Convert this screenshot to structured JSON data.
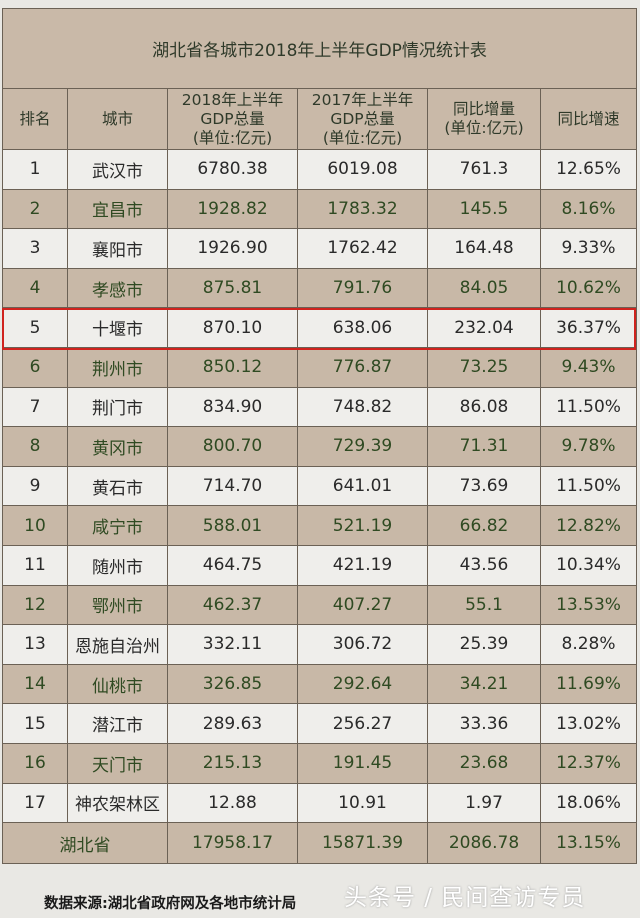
{
  "title": "湖北省各城市2018年上半年GDP情况统计表",
  "headers": {
    "rank": "排名",
    "city": "城市",
    "gdp2018": [
      "2018年上半年",
      "GDP总量",
      "(单位:亿元)"
    ],
    "gdp2017": [
      "2017年上半年",
      "GDP总量",
      "(单位:亿元)"
    ],
    "increase": [
      "同比增量",
      "(单位:亿元)"
    ],
    "growth": "同比增速"
  },
  "rows": [
    {
      "rank": "1",
      "city": "武汉市",
      "gdp2018": "6780.38",
      "gdp2017": "6019.08",
      "increase": "761.3",
      "growth": "12.65%"
    },
    {
      "rank": "2",
      "city": "宜昌市",
      "gdp2018": "1928.82",
      "gdp2017": "1783.32",
      "increase": "145.5",
      "growth": "8.16%"
    },
    {
      "rank": "3",
      "city": "襄阳市",
      "gdp2018": "1926.90",
      "gdp2017": "1762.42",
      "increase": "164.48",
      "growth": "9.33%"
    },
    {
      "rank": "4",
      "city": "孝感市",
      "gdp2018": "875.81",
      "gdp2017": "791.76",
      "increase": "84.05",
      "growth": "10.62%"
    },
    {
      "rank": "5",
      "city": "十堰市",
      "gdp2018": "870.10",
      "gdp2017": "638.06",
      "increase": "232.04",
      "growth": "36.37%"
    },
    {
      "rank": "6",
      "city": "荆州市",
      "gdp2018": "850.12",
      "gdp2017": "776.87",
      "increase": "73.25",
      "growth": "9.43%"
    },
    {
      "rank": "7",
      "city": "荆门市",
      "gdp2018": "834.90",
      "gdp2017": "748.82",
      "increase": "86.08",
      "growth": "11.50%"
    },
    {
      "rank": "8",
      "city": "黄冈市",
      "gdp2018": "800.70",
      "gdp2017": "729.39",
      "increase": "71.31",
      "growth": "9.78%"
    },
    {
      "rank": "9",
      "city": "黄石市",
      "gdp2018": "714.70",
      "gdp2017": "641.01",
      "increase": "73.69",
      "growth": "11.50%"
    },
    {
      "rank": "10",
      "city": "咸宁市",
      "gdp2018": "588.01",
      "gdp2017": "521.19",
      "increase": "66.82",
      "growth": "12.82%"
    },
    {
      "rank": "11",
      "city": "随州市",
      "gdp2018": "464.75",
      "gdp2017": "421.19",
      "increase": "43.56",
      "growth": "10.34%"
    },
    {
      "rank": "12",
      "city": "鄂州市",
      "gdp2018": "462.37",
      "gdp2017": "407.27",
      "increase": "55.1",
      "growth": "13.53%"
    },
    {
      "rank": "13",
      "city": "恩施自治州",
      "gdp2018": "332.11",
      "gdp2017": "306.72",
      "increase": "25.39",
      "growth": "8.28%"
    },
    {
      "rank": "14",
      "city": "仙桃市",
      "gdp2018": "326.85",
      "gdp2017": "292.64",
      "increase": "34.21",
      "growth": "11.69%"
    },
    {
      "rank": "15",
      "city": "潜江市",
      "gdp2018": "289.63",
      "gdp2017": "256.27",
      "increase": "33.36",
      "growth": "13.02%"
    },
    {
      "rank": "16",
      "city": "天门市",
      "gdp2018": "215.13",
      "gdp2017": "191.45",
      "increase": "23.68",
      "growth": "12.37%"
    },
    {
      "rank": "17",
      "city": "神农架林区",
      "gdp2018": "12.88",
      "gdp2017": "10.91",
      "increase": "1.97",
      "growth": "18.06%"
    }
  ],
  "total": {
    "label": "湖北省",
    "gdp2018": "17958.17",
    "gdp2017": "15871.39",
    "increase": "2086.78",
    "growth": "13.15%"
  },
  "highlighted_rank": "5",
  "source": "数据来源:湖北省政府网及各地市统计局",
  "watermark": "头条号 / 民间查访专员",
  "colors": {
    "header_bg": "#c9b9a8",
    "alt_row_bg": "#c8b8a7",
    "highlight_border": "#d0231e",
    "alt_row_text": "#2f4a22"
  }
}
